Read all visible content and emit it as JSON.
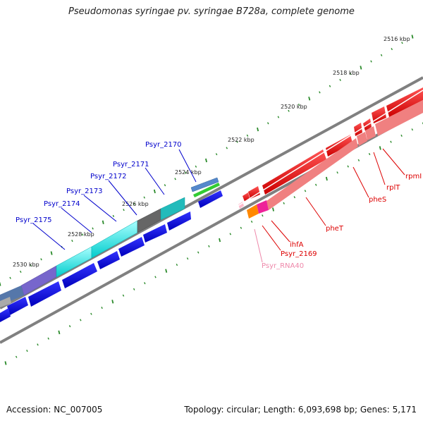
{
  "title": "Pseudomonas syringae pv. syringae B728a, complete genome",
  "footer": {
    "accession": "Accession: NC_007005",
    "summary": "Topology: circular; Length: 6,093,698 bp; Genes: 5,171"
  },
  "colors": {
    "backbone": "#808080",
    "tick": "#2a8a2a",
    "forward_label": "#0000cc",
    "reverse_label": "#dd0000",
    "rna_label": "#ee88aa"
  },
  "chart_data": {
    "type": "genome-map",
    "scale_labels": [
      "2516 kbp",
      "2518 kbp",
      "2520 kbp",
      "2522 kbp",
      "2524 kbp",
      "2526 kbp",
      "2528 kbp",
      "2530 kbp"
    ],
    "forward_gene_labels": [
      "Psyr_2170",
      "Psyr_2171",
      "Psyr_2172",
      "Psyr_2173",
      "Psyr_2174",
      "Psyr_2175"
    ],
    "reverse_gene_labels": [
      "rpmI",
      "rplT",
      "pheS",
      "pheT",
      "ihfA",
      "Psyr_2169",
      "Psyr_RNA40"
    ]
  }
}
